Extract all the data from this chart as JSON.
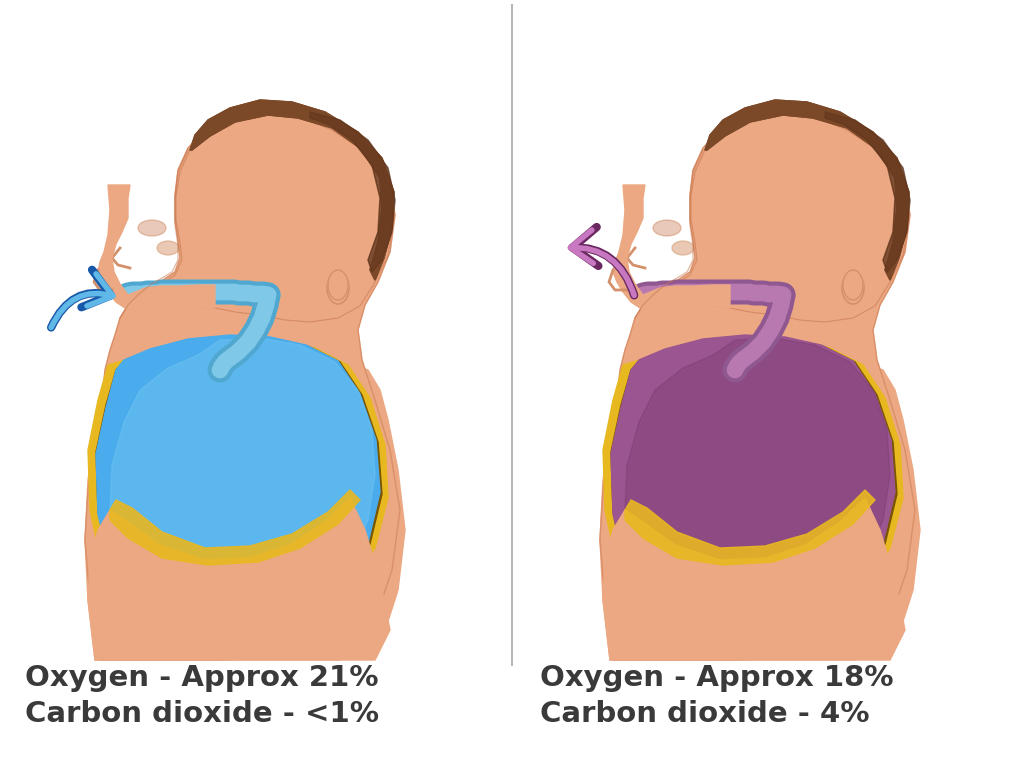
{
  "bg_color": "#ffffff",
  "divider_color": "#b8b8b8",
  "text_color": "#3a3a3a",
  "left_label_line1": "Oxygen - Approx 21%",
  "left_label_line2": "Carbon dioxide - <1%",
  "right_label_line1": "Oxygen - Approx 18%",
  "right_label_line2": "Carbon dioxide - 4%",
  "label_fontsize": 21,
  "label_fontweight": "bold",
  "skin_color": "#EBA882",
  "skin_shadow": "#D4906A",
  "skin_highlight": "#F5C5A0",
  "hair_color": "#7B4828",
  "lung_blue": "#4AACED",
  "lung_blue_light": "#78C8F0",
  "lung_purple": "#9B5590",
  "lung_purple_dark": "#7A3A70",
  "trachea_blue": "#80C8E8",
  "trachea_blue_dark": "#50A8D0",
  "trachea_purple": "#B878B0",
  "trachea_purple_dark": "#905890",
  "rib_yellow": "#E8B820",
  "rib_dark": "#7A5500",
  "arrow_blue_light": "#60B8E8",
  "arrow_blue_dark": "#1858A8",
  "arrow_purple_light": "#C878C0",
  "arrow_purple_dark": "#6A2860",
  "body_outline": "#C87850"
}
